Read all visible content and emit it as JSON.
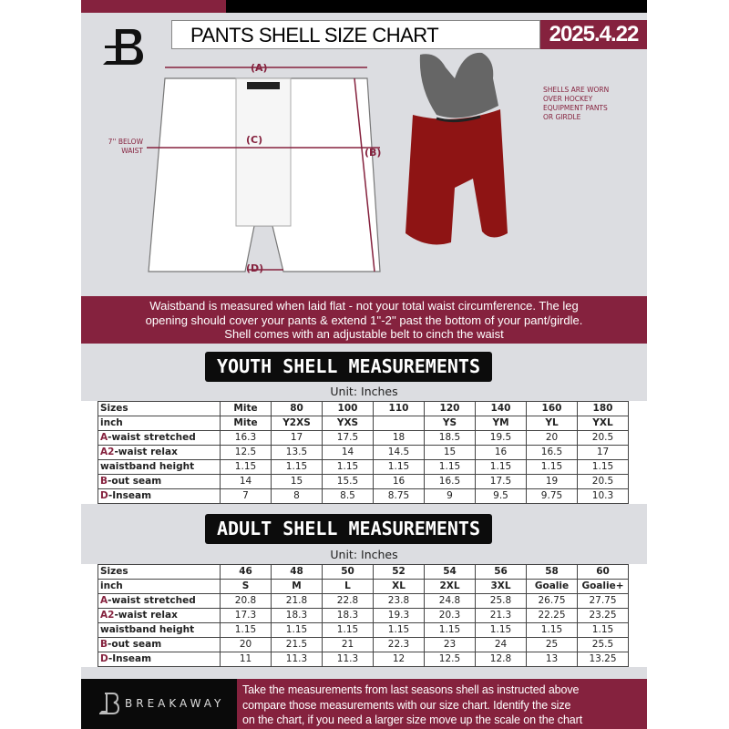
{
  "header": {
    "title": "PANTS SHELL SIZE CHART",
    "date": "2025.4.22",
    "logo_letter": "B"
  },
  "diagram": {
    "label_a": "(A)",
    "label_b": "(B)",
    "label_c": "(C)",
    "label_d": "(D)",
    "below_waist_note": [
      "7'' BELOW",
      "WAIST"
    ],
    "shell_note": [
      "SHELLS ARE WORN",
      "OVER HOCKEY",
      "EQUIPMENT PANTS",
      "OR GIRDLE"
    ]
  },
  "info_band": [
    "Waistband is measured when laid flat - not your total waist circumference. The leg",
    "opening should cover your pants & extend 1''-2'' past the bottom of your pant/girdle.",
    "Shell comes with an adjustable belt to cinch the waist"
  ],
  "youth": {
    "title": "YOUTH SHELL MEASUREMENTS",
    "unit": "Unit: Inches",
    "rows": [
      {
        "prefix": "",
        "label": "Sizes",
        "cells": [
          "Mite",
          "80",
          "100",
          "110",
          "120",
          "140",
          "160",
          "180"
        ]
      },
      {
        "prefix": "",
        "label": "inch",
        "cells": [
          "Mite",
          "Y2XS",
          "YXS",
          "",
          "YS",
          "YM",
          "YL",
          "YXL"
        ]
      },
      {
        "prefix": "A",
        "label": "-waist stretched",
        "cells": [
          "16.3",
          "17",
          "17.5",
          "18",
          "18.5",
          "19.5",
          "20",
          "20.5"
        ]
      },
      {
        "prefix": "A2",
        "label": "-waist relax",
        "cells": [
          "12.5",
          "13.5",
          "14",
          "14.5",
          "15",
          "16",
          "16.5",
          "17"
        ]
      },
      {
        "prefix": "",
        "label": "waistband height",
        "cells": [
          "1.15",
          "1.15",
          "1.15",
          "1.15",
          "1.15",
          "1.15",
          "1.15",
          "1.15"
        ]
      },
      {
        "prefix": "B",
        "label": "-out seam",
        "cells": [
          "14",
          "15",
          "15.5",
          "16",
          "16.5",
          "17.5",
          "19",
          "20.5"
        ]
      },
      {
        "prefix": "D",
        "label": "-Inseam",
        "cells": [
          "7",
          "8",
          "8.5",
          "8.75",
          "9",
          "9.5",
          "9.75",
          "10.3"
        ]
      }
    ]
  },
  "adult": {
    "title": "ADULT SHELL MEASUREMENTS",
    "unit": "Unit: Inches",
    "rows": [
      {
        "prefix": "",
        "label": "Sizes",
        "cells": [
          "46",
          "48",
          "50",
          "52",
          "54",
          "56",
          "58",
          "60"
        ]
      },
      {
        "prefix": "",
        "label": "inch",
        "cells": [
          "S",
          "M",
          "L",
          "XL",
          "2XL",
          "3XL",
          "Goalie",
          "Goalie+"
        ]
      },
      {
        "prefix": "A",
        "label": "-waist stretched",
        "cells": [
          "20.8",
          "21.8",
          "22.8",
          "23.8",
          "24.8",
          "25.8",
          "26.75",
          "27.75"
        ]
      },
      {
        "prefix": "A2",
        "label": "-waist relax",
        "cells": [
          "17.3",
          "18.3",
          "18.3",
          "19.3",
          "20.3",
          "21.3",
          "22.25",
          "23.25"
        ]
      },
      {
        "prefix": "",
        "label": "waistband height",
        "cells": [
          "1.15",
          "1.15",
          "1.15",
          "1.15",
          "1.15",
          "1.15",
          "1.15",
          "1.15"
        ]
      },
      {
        "prefix": "B",
        "label": "-out seam",
        "cells": [
          "20",
          "21.5",
          "21",
          "22.3",
          "23",
          "24",
          "25",
          "25.5"
        ]
      },
      {
        "prefix": "D",
        "label": "-Inseam",
        "cells": [
          "11",
          "11.3",
          "11.3",
          "12",
          "12.5",
          "12.8",
          "13",
          "13.25"
        ]
      }
    ]
  },
  "footer": {
    "brand": "BREAKAWAY",
    "text": [
      "Take the measurements from last seasons shell as instructed above",
      "compare those measurements  with our size chart. Identify the size",
      "on the chart, if you need a larger size move up the scale on the chart"
    ]
  },
  "colors": {
    "brand": "#85223e",
    "black": "#0c0c0c",
    "background": "#dcdde1"
  }
}
